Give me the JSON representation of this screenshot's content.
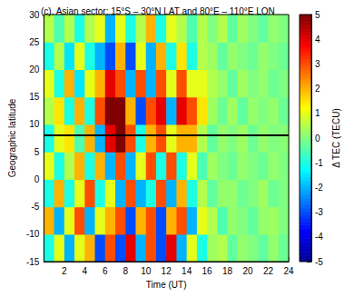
{
  "chart_data": {
    "type": "heatmap",
    "title": "(c). Asian sector: 15°S – 30°N LAT and 80°E – 110°E LON",
    "x_label": "Time (UT)",
    "y_label": "Geographic latitude",
    "xlim": [
      0,
      24
    ],
    "xticks": [
      2,
      4,
      6,
      8,
      10,
      12,
      14,
      16,
      18,
      20,
      22,
      24
    ],
    "ylim": [
      -15,
      30
    ],
    "yticks": [
      -15,
      -10,
      -5,
      0,
      5,
      10,
      15,
      20,
      25,
      30
    ],
    "x_bins": [
      0,
      1,
      2,
      3,
      4,
      5,
      6,
      7,
      8,
      9,
      10,
      11,
      12,
      13,
      14,
      15,
      16,
      17,
      18,
      19,
      20,
      21,
      22,
      23,
      24
    ],
    "y_bins": [
      -15,
      -10,
      -5,
      0,
      5,
      10,
      15,
      20,
      25,
      30
    ],
    "cells": [
      [
        -1,
        1,
        -2,
        1,
        2,
        -3,
        3,
        -3,
        4,
        -2,
        3,
        -3,
        4,
        -2,
        1,
        -1,
        0.3,
        0.5,
        -0.3,
        0.2,
        0,
        -0.3,
        0.2,
        -0.2
      ],
      [
        2,
        -2,
        1,
        3,
        -2,
        1,
        2,
        3,
        -3,
        2,
        3,
        -3,
        2,
        3,
        -2,
        1,
        0.5,
        -0.5,
        0.2,
        0,
        -0.3,
        0.2,
        0.3,
        0
      ],
      [
        -1,
        2,
        -1,
        1,
        3,
        -1,
        1,
        -2,
        3,
        -2,
        -1,
        3,
        -2,
        2,
        -1,
        0.5,
        -0.3,
        0.2,
        0.2,
        -0.2,
        0,
        0.3,
        -0.2,
        0
      ],
      [
        1,
        -1,
        0.5,
        2,
        -1,
        2,
        -2,
        3,
        -2,
        1,
        3,
        -1,
        3,
        -1,
        1,
        -0.5,
        0.3,
        0,
        -0.2,
        0.2,
        0,
        -0.2,
        0.2,
        0
      ],
      [
        -1,
        1,
        1.5,
        -0.5,
        2,
        -2,
        4,
        5,
        3,
        -1,
        2,
        3,
        1,
        2,
        2,
        0.5,
        -0.3,
        0.2,
        0,
        0.3,
        -0.2,
        0.2,
        0,
        0.1
      ],
      [
        0.5,
        1.5,
        -1,
        2,
        -1,
        3,
        5,
        5,
        2,
        -3,
        3,
        4,
        -2,
        4,
        3,
        1.5,
        0.3,
        -0.2,
        0.3,
        -0.3,
        0.2,
        0,
        0.2,
        -0.2
      ],
      [
        1,
        -1,
        2,
        -1.5,
        1,
        2,
        4,
        3,
        -2,
        3,
        -2,
        3,
        1,
        3,
        1,
        1,
        0.5,
        0.2,
        -0.3,
        0.3,
        0,
        0.2,
        -0.2,
        0
      ],
      [
        -1,
        0.5,
        -1.5,
        1,
        -1,
        -2,
        -3,
        2,
        -3,
        1,
        -2,
        2,
        -1,
        1.5,
        -1,
        0.5,
        0.3,
        -0.3,
        0.2,
        0,
        -0.2,
        0.2,
        0,
        -0.2
      ],
      [
        0.5,
        -0.5,
        0.5,
        -1,
        0.5,
        1,
        -2,
        1,
        -1,
        0.5,
        2,
        -1,
        1,
        0.5,
        -0.5,
        0.5,
        0,
        0.5,
        -0.3,
        0.3,
        0,
        -0.3,
        0.2,
        0
      ]
    ],
    "horizontal_line": 8,
    "color_bar": {
      "range": [
        -5,
        5
      ],
      "ticks": [
        -5,
        -4,
        -3,
        -2,
        -1,
        0,
        1,
        2,
        3,
        4,
        5
      ],
      "label": "Δ TEC (TECU)"
    }
  }
}
